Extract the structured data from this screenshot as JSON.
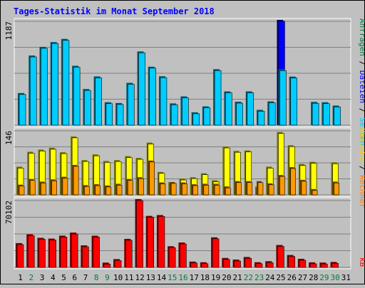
{
  "chart_data": [
    {
      "type": "bar",
      "title": "Tages-Statistik im Monat September 2018",
      "y_max_label": "1187",
      "right_labels": [
        "Anfragen",
        "Dateien",
        "Seiten"
      ],
      "categories": [
        "1",
        "2",
        "3",
        "4",
        "5",
        "6",
        "7",
        "8",
        "9",
        "10",
        "11",
        "12",
        "13",
        "14",
        "15",
        "16",
        "17",
        "18",
        "19",
        "20",
        "21",
        "22",
        "23",
        "24",
        "25",
        "26",
        "27",
        "28",
        "29",
        "30",
        "31"
      ],
      "weekend_days": [
        2,
        8,
        9,
        15,
        16,
        22,
        23,
        29,
        30
      ],
      "series": [
        {
          "name": "Anfragen",
          "color": "#0000ff",
          "values": [
            0,
            0,
            0,
            0,
            0,
            0,
            0,
            0,
            0,
            0,
            0,
            0,
            0,
            0,
            0,
            0,
            0,
            0,
            0,
            0,
            0,
            0,
            0,
            0,
            1187,
            0,
            0,
            0,
            0,
            0,
            0
          ]
        },
        {
          "name": "Dateien",
          "color": "#00ccff",
          "values": [
            351,
            780,
            879,
            934,
            970,
            663,
            397,
            541,
            246,
            237,
            468,
            827,
            652,
            543,
            233,
            313,
            131,
            199,
            624,
            370,
            252,
            370,
            159,
            256,
            624,
            539,
            0,
            250,
            246,
            208,
            0
          ]
        }
      ]
    },
    {
      "type": "bar",
      "y_max_label": "146",
      "right_labels": [
        "Besuche",
        "Rechner"
      ],
      "series": [
        {
          "name": "Seiten",
          "color": "#ffff00",
          "values": [
            61,
            95,
            100,
            104,
            94,
            130,
            76,
            89,
            74,
            76,
            85,
            81,
            116,
            49,
            26,
            34,
            37,
            46,
            30,
            107,
            97,
            98,
            16,
            61,
            140,
            110,
            67,
            72,
            0,
            71,
            0
          ]
        },
        {
          "name": "Besuche",
          "color": "#ff9900",
          "values": [
            20,
            33,
            27,
            32,
            38,
            65,
            19,
            21,
            18,
            22,
            33,
            37,
            75,
            25,
            26,
            25,
            21,
            22,
            22,
            16,
            28,
            28,
            28,
            23,
            42,
            60,
            31,
            10,
            0,
            27,
            0
          ]
        }
      ]
    },
    {
      "type": "bar",
      "y_max_label": "70102",
      "right_labels": [
        "kB"
      ],
      "series": [
        {
          "name": "kB",
          "color": "#ff0000",
          "values": [
            23950,
            33200,
            29500,
            28700,
            31800,
            35000,
            21600,
            31700,
            3500,
            7200,
            28400,
            70102,
            52500,
            53400,
            20700,
            24600,
            4600,
            3900,
            30000,
            8400,
            6700,
            9400,
            3900,
            5000,
            22000,
            11500,
            7500,
            3800,
            3600,
            4200,
            0
          ]
        }
      ]
    }
  ],
  "colors": {
    "background": "#c0c0c0",
    "title": "#0000ff",
    "weekday_label": "#000000",
    "weekend_label": "#007d3b",
    "axis_label": "#000000",
    "dateien_label": "#0000ff",
    "seiten_label": "#00ccff",
    "besuche_label": "#ffcc00",
    "rechner_label": "#ff8000",
    "kb_label": "#ff0000",
    "gridline": "#808080"
  }
}
